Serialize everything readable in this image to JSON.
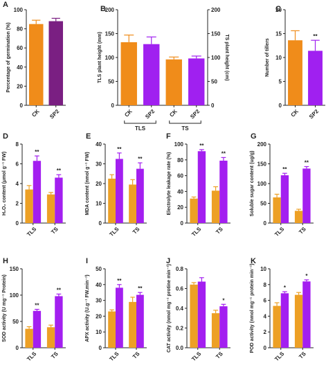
{
  "chart_data": [
    {
      "type": "bar",
      "label": "A",
      "ylabel": "Percentage of germination (%)",
      "categories": [
        "CK",
        "SP2"
      ],
      "bar_colors": [
        "#f08c1a",
        "#7a1f82"
      ],
      "ylim": [
        0,
        100
      ],
      "yticks": [
        0,
        20,
        40,
        60,
        80,
        100
      ],
      "series": [
        {
          "values": [
            85,
            88
          ],
          "errors": [
            4,
            3
          ]
        }
      ]
    },
    {
      "type": "bar",
      "label": "B",
      "ylabel": "TLS plant height (mm)",
      "y2label": "TS plant height (cm)",
      "categories": [
        "CK",
        "SP2",
        "CK",
        "SP2"
      ],
      "groups": [
        "TLS",
        "TS"
      ],
      "bar_colors": [
        "#f08c1a",
        "#a020f0",
        "#f08c1a",
        "#a020f0"
      ],
      "ylim": [
        0,
        200
      ],
      "yticks": [
        0,
        50,
        100,
        150,
        200
      ],
      "y2lim": [
        0,
        200
      ],
      "y2ticks": [
        0,
        50,
        100,
        150,
        200
      ],
      "series": [
        {
          "values": [
            132,
            128,
            null,
            null
          ],
          "errors": [
            15,
            15,
            null,
            null
          ]
        },
        {
          "axis": "y2",
          "values": [
            null,
            null,
            96,
            98
          ],
          "errors": [
            null,
            null,
            5,
            5
          ]
        }
      ]
    },
    {
      "type": "bar",
      "label": "C",
      "ylabel": "Number of tillers",
      "categories": [
        "CK",
        "SP2"
      ],
      "bar_colors": [
        "#f08c1a",
        "#a020f0"
      ],
      "ylim": [
        0,
        20
      ],
      "yticks": [
        0,
        5,
        10,
        15,
        20
      ],
      "series": [
        {
          "values": [
            13.6,
            11.4
          ],
          "errors": [
            2,
            2.2
          ],
          "annotations": [
            null,
            "**"
          ]
        }
      ]
    },
    {
      "type": "bar",
      "label": "D",
      "ylabel": "H₂O₂ content (μmol g⁻¹ FW)",
      "categories": [
        "TLS",
        "TS"
      ],
      "ylim": [
        0,
        8
      ],
      "yticks": [
        0,
        2,
        4,
        6,
        8
      ],
      "series": [
        {
          "color": "#eda025",
          "values": [
            3.4,
            2.9
          ],
          "errors": [
            0.4,
            0.2
          ]
        },
        {
          "color": "#a31ff0",
          "values": [
            6.3,
            4.6
          ],
          "errors": [
            0.5,
            0.3
          ],
          "annotations": [
            "**",
            "**"
          ]
        }
      ]
    },
    {
      "type": "bar",
      "label": "E",
      "ylabel": "MDA content (nmol g⁻¹ FW)",
      "categories": [
        "TLS",
        "TS"
      ],
      "ylim": [
        0,
        40
      ],
      "yticks": [
        0,
        10,
        20,
        30,
        40
      ],
      "series": [
        {
          "color": "#eda025",
          "values": [
            22.5,
            19.5
          ],
          "errors": [
            2,
            2.5
          ]
        },
        {
          "color": "#a31ff0",
          "values": [
            32.5,
            27.5
          ],
          "errors": [
            3,
            3
          ],
          "annotations": [
            "**",
            "**"
          ]
        }
      ]
    },
    {
      "type": "bar",
      "label": "F",
      "ylabel": "Electrolyte leakage rate (%)",
      "categories": [
        "TLS",
        "TS"
      ],
      "ylim": [
        0,
        100
      ],
      "yticks": [
        0,
        20,
        40,
        60,
        80,
        100
      ],
      "series": [
        {
          "color": "#eda025",
          "values": [
            31,
            41
          ],
          "errors": [
            2,
            5
          ]
        },
        {
          "color": "#a31ff0",
          "values": [
            91,
            79
          ],
          "errors": [
            2,
            4
          ],
          "annotations": [
            "**",
            "**"
          ]
        }
      ]
    },
    {
      "type": "bar",
      "label": "G",
      "ylabel": "Soluble sugar content (ug/g)",
      "categories": [
        "TLS",
        "TS"
      ],
      "ylim": [
        0,
        200
      ],
      "yticks": [
        0,
        50,
        100,
        150,
        200
      ],
      "series": [
        {
          "color": "#eda025",
          "values": [
            65,
            31
          ],
          "errors": [
            8,
            4
          ]
        },
        {
          "color": "#a31ff0",
          "values": [
            121,
            138
          ],
          "errors": [
            5,
            5
          ],
          "annotations": [
            "**",
            "**"
          ]
        }
      ]
    },
    {
      "type": "bar",
      "label": "H",
      "ylabel": "SOD activity (U mg⁻¹ Protein)",
      "categories": [
        "TLS",
        "TS"
      ],
      "ylim": [
        0,
        150
      ],
      "yticks": [
        0,
        50,
        100,
        150
      ],
      "series": [
        {
          "color": "#eda025",
          "values": [
            36,
            39
          ],
          "errors": [
            4,
            4
          ]
        },
        {
          "color": "#a31ff0",
          "values": [
            70,
            98
          ],
          "errors": [
            3,
            4
          ],
          "annotations": [
            "**",
            "**"
          ]
        }
      ]
    },
    {
      "type": "bar",
      "label": "I",
      "ylabel": "APX activity (U.g⁻¹ FW.min⁻¹)",
      "categories": [
        "TLS",
        "TS"
      ],
      "ylim": [
        0,
        50
      ],
      "yticks": [
        0,
        10,
        20,
        30,
        40,
        50
      ],
      "series": [
        {
          "color": "#eda025",
          "values": [
            23,
            29
          ],
          "errors": [
            1,
            3
          ]
        },
        {
          "color": "#a31ff0",
          "values": [
            38,
            33.5
          ],
          "errors": [
            2,
            1.5
          ],
          "annotations": [
            "**",
            "**"
          ]
        }
      ]
    },
    {
      "type": "bar",
      "label": "J",
      "ylabel": "CAT activity (nmol mg⁻¹ protine min⁻¹)",
      "categories": [
        "TLS",
        "TS"
      ],
      "ylim": [
        0,
        0.8
      ],
      "yticks": [
        {
          "value": 0,
          "label": "0.0"
        },
        0.2,
        0.4,
        0.6,
        0.8
      ],
      "series": [
        {
          "color": "#eda025",
          "values": [
            0.64,
            0.35
          ],
          "errors": [
            0.02,
            0.03
          ]
        },
        {
          "color": "#a31ff0",
          "values": [
            0.67,
            0.42
          ],
          "errors": [
            0.04,
            0.02
          ],
          "annotations": [
            null,
            "*"
          ]
        }
      ]
    },
    {
      "type": "bar",
      "label": "K",
      "ylabel": "POD activity (nmol mg⁻¹ protein min⁻¹)",
      "categories": [
        "TLS",
        "TS"
      ],
      "ylim": [
        0,
        10
      ],
      "yticks": [
        0,
        2,
        4,
        6,
        8,
        10
      ],
      "series": [
        {
          "color": "#eda025",
          "values": [
            5.3,
            6.7
          ],
          "errors": [
            0.4,
            0.3
          ]
        },
        {
          "color": "#a31ff0",
          "values": [
            6.9,
            8.4
          ],
          "errors": [
            0.2,
            0.2
          ],
          "annotations": [
            "*",
            "*"
          ]
        }
      ]
    }
  ]
}
